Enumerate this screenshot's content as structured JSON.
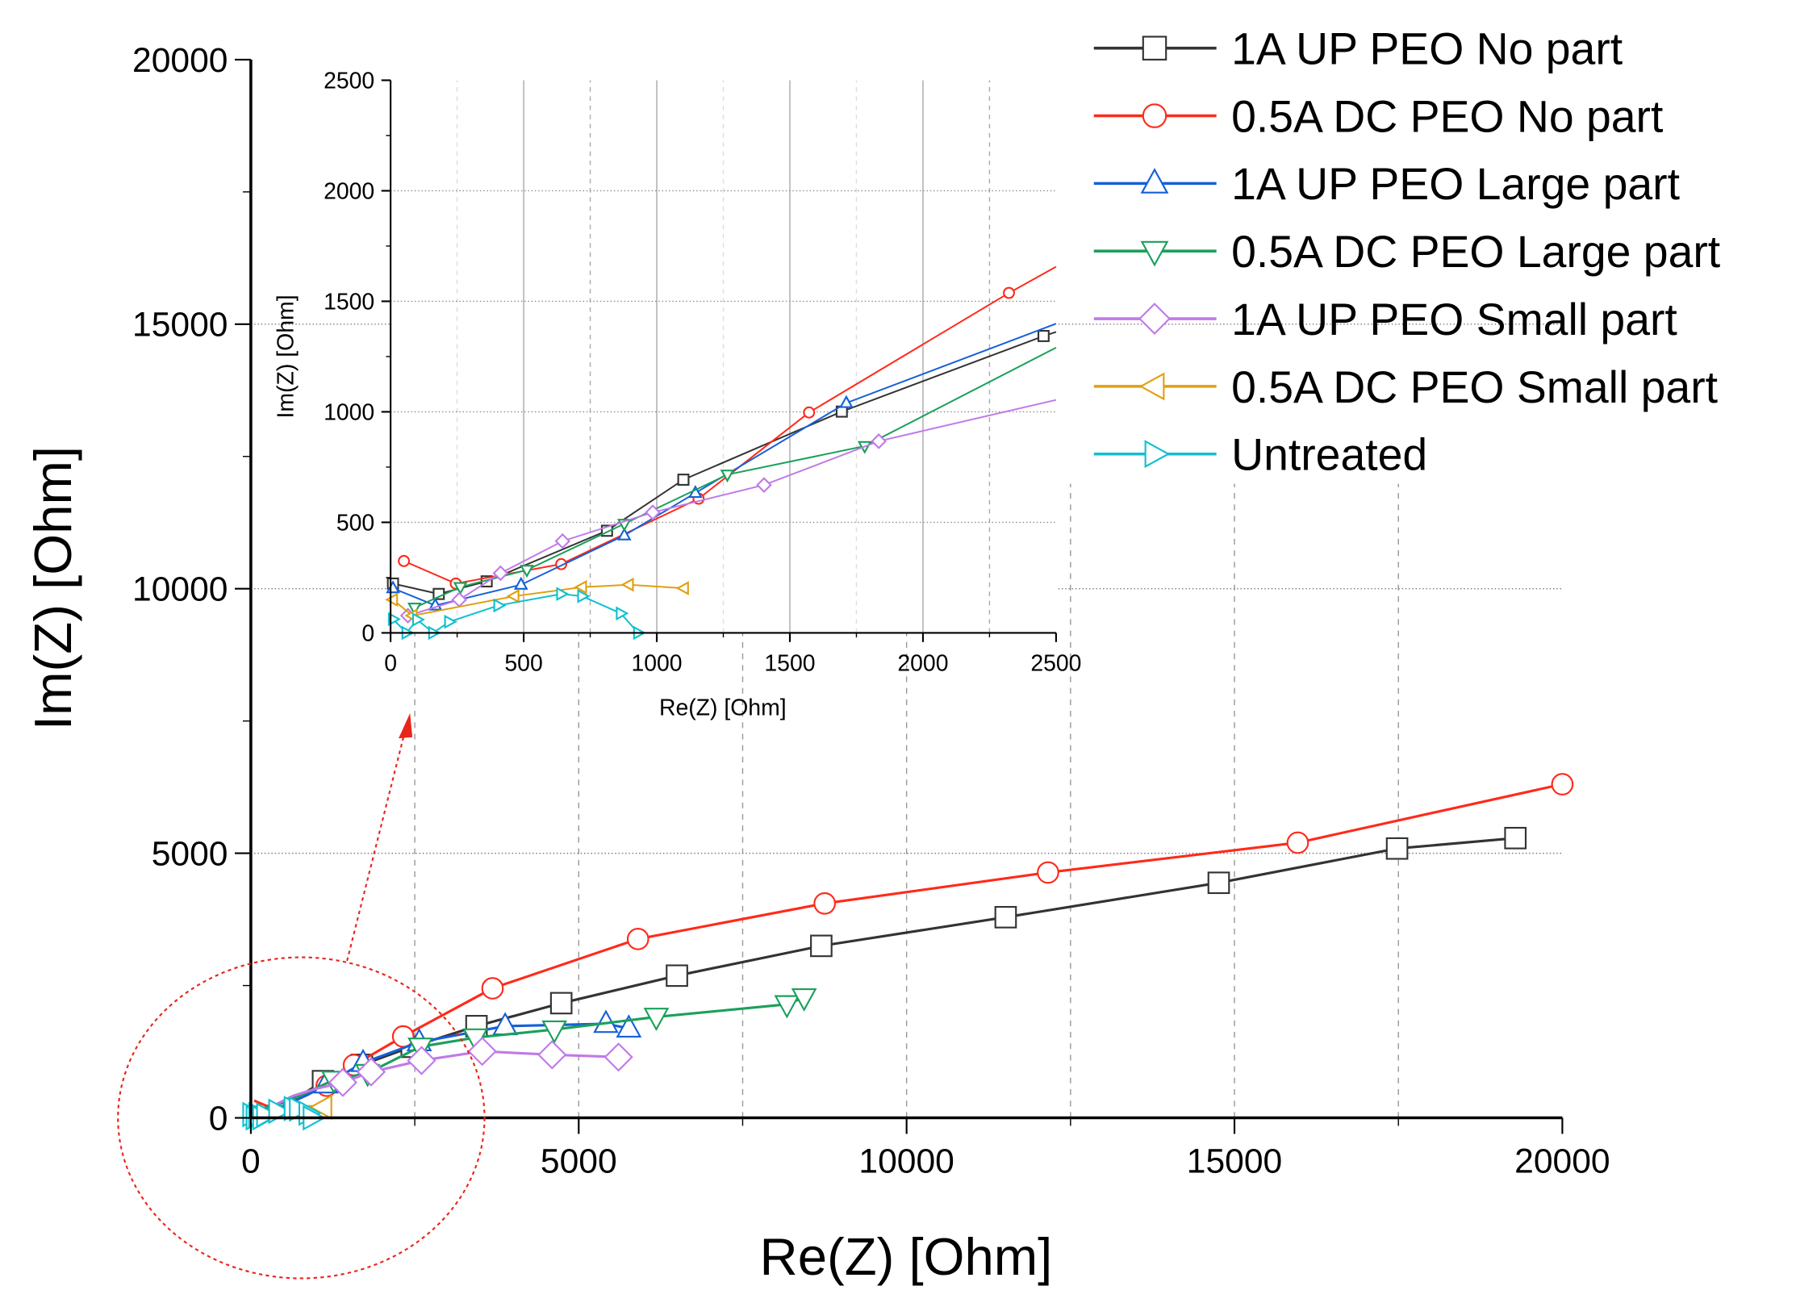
{
  "chart_data": [
    {
      "type": "line",
      "xlabel": "Re(Z) [Ohm]",
      "ylabel": "Im(Z) [Ohm]",
      "xlim": [
        0,
        20000
      ],
      "ylim": [
        0,
        20000
      ],
      "xticks": [
        "0",
        "5000",
        "10000",
        "15000",
        "20000"
      ],
      "yticks": [
        "0",
        "5000",
        "10000",
        "15000",
        "20000"
      ],
      "grid": true,
      "legend": "top-right",
      "series": [
        {
          "name": "1A UP PEO No part",
          "color": "#333333",
          "marker": "square",
          "x": [
            9,
            181,
            361,
            813,
            1100,
            1695,
            2453,
            3441,
            4734,
            6498,
            8699,
            11511,
            14760,
            17480,
            19284
          ],
          "y": [
            223,
            176,
            233,
            462,
            693,
            1001,
            1343,
            1733,
            2167,
            2687,
            3250,
            3792,
            4442,
            5090,
            5287
          ]
        },
        {
          "name": "0.5A DC PEO No part",
          "color": "#ff2a1a",
          "marker": "circle",
          "x": [
            50,
            245,
            641,
            1157,
            1572,
            2323,
            3686,
            5904,
            8751,
            12157,
            15965,
            20000
          ],
          "y": [
            325,
            223,
            311,
            607,
            997,
            1538,
            2448,
            3380,
            4052,
            4637,
            5200,
            6305
          ]
        },
        {
          "name": "1A UP PEO Large part",
          "color": "#1560d8",
          "marker": "triangle-up",
          "x": [
            9,
            168,
            490,
            878,
            1145,
            1712,
            2568,
            3878,
            5415,
            5764
          ],
          "y": [
            202,
            124,
            218,
            441,
            633,
            1040,
            1430,
            1733,
            1777,
            1690
          ]
        },
        {
          "name": "0.5A DC PEO Large part",
          "color": "#1aa05a",
          "marker": "triangle-down",
          "x": [
            90,
            262,
            512,
            878,
            1265,
            1781,
            2585,
            3424,
            4629,
            6183,
            8175,
            8437
          ],
          "y": [
            114,
            207,
            285,
            493,
            716,
            845,
            1343,
            1517,
            1668,
            1907,
            2145,
            2275
          ]
        },
        {
          "name": "1A UP PEO Small part",
          "color": "#c07ae8",
          "marker": "diamond",
          "x": [
            65,
            258,
            413,
            646,
            985,
            1403,
            1834,
            2603,
            3529,
            4594,
            5607
          ],
          "y": [
            78,
            150,
            270,
            415,
            545,
            669,
            867,
            1083,
            1257,
            1192,
            1148
          ]
        },
        {
          "name": "0.5A DC PEO Small part",
          "color": "#e0a010",
          "marker": "triangle-left",
          "x": [
            9,
            82,
            465,
            719,
            895,
            1102
          ],
          "y": [
            150,
            78,
            166,
            207,
            218,
            202
          ]
        },
        {
          "name": "Untreated",
          "color": "#10c0d0",
          "marker": "triangle-right",
          "x": [
            9,
            60,
            100,
            160,
            220,
            405,
            641,
            720,
            865,
            930
          ],
          "y": [
            62,
            0,
            60,
            0,
            50,
            124,
            176,
            166,
            88,
            0
          ]
        }
      ]
    },
    {
      "type": "line",
      "inset": true,
      "xlabel": "Re(Z) [Ohm]",
      "ylabel": "Im(Z) [Ohm]",
      "xlim": [
        0,
        2500
      ],
      "ylim": [
        0,
        2500
      ],
      "xticks": [
        "0",
        "500",
        "1000",
        "1500",
        "2000",
        "2500"
      ],
      "yticks": [
        "0",
        "500",
        "1000",
        "1500",
        "2000",
        "2500"
      ]
    }
  ]
}
